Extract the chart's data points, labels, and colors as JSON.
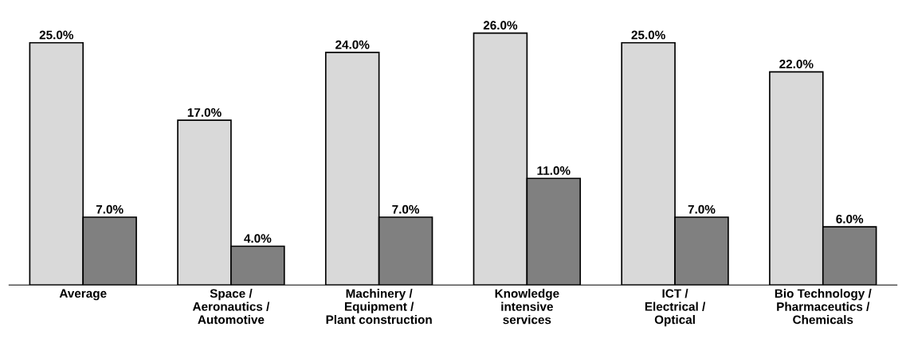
{
  "chart_data": {
    "type": "bar",
    "categories": [
      "Average",
      "Space /\nAeronautics /\nAutomotive",
      "Machinery /\nEquipment /\nPlant construction",
      "Knowledge\nintensive\nservices",
      "ICT /\nElectrical /\nOptical",
      "Bio Technology /\nPharmaceutics /\nChemicals"
    ],
    "series": [
      {
        "color": "#d9d9d9",
        "values": [
          25,
          17,
          24,
          26,
          25,
          22
        ],
        "value_labels": [
          "25.0%",
          "17.0%",
          "24.0%",
          "26.0%",
          "25.0%",
          "22.0%"
        ]
      },
      {
        "color": "#808080",
        "values": [
          7,
          4,
          7,
          11,
          7,
          6
        ],
        "value_labels": [
          "7.0%",
          "4.0%",
          "7.0%",
          "11.0%",
          "7.0%",
          "6.0%"
        ]
      }
    ],
    "grid": false,
    "legend": false,
    "tick_labels": "x"
  }
}
